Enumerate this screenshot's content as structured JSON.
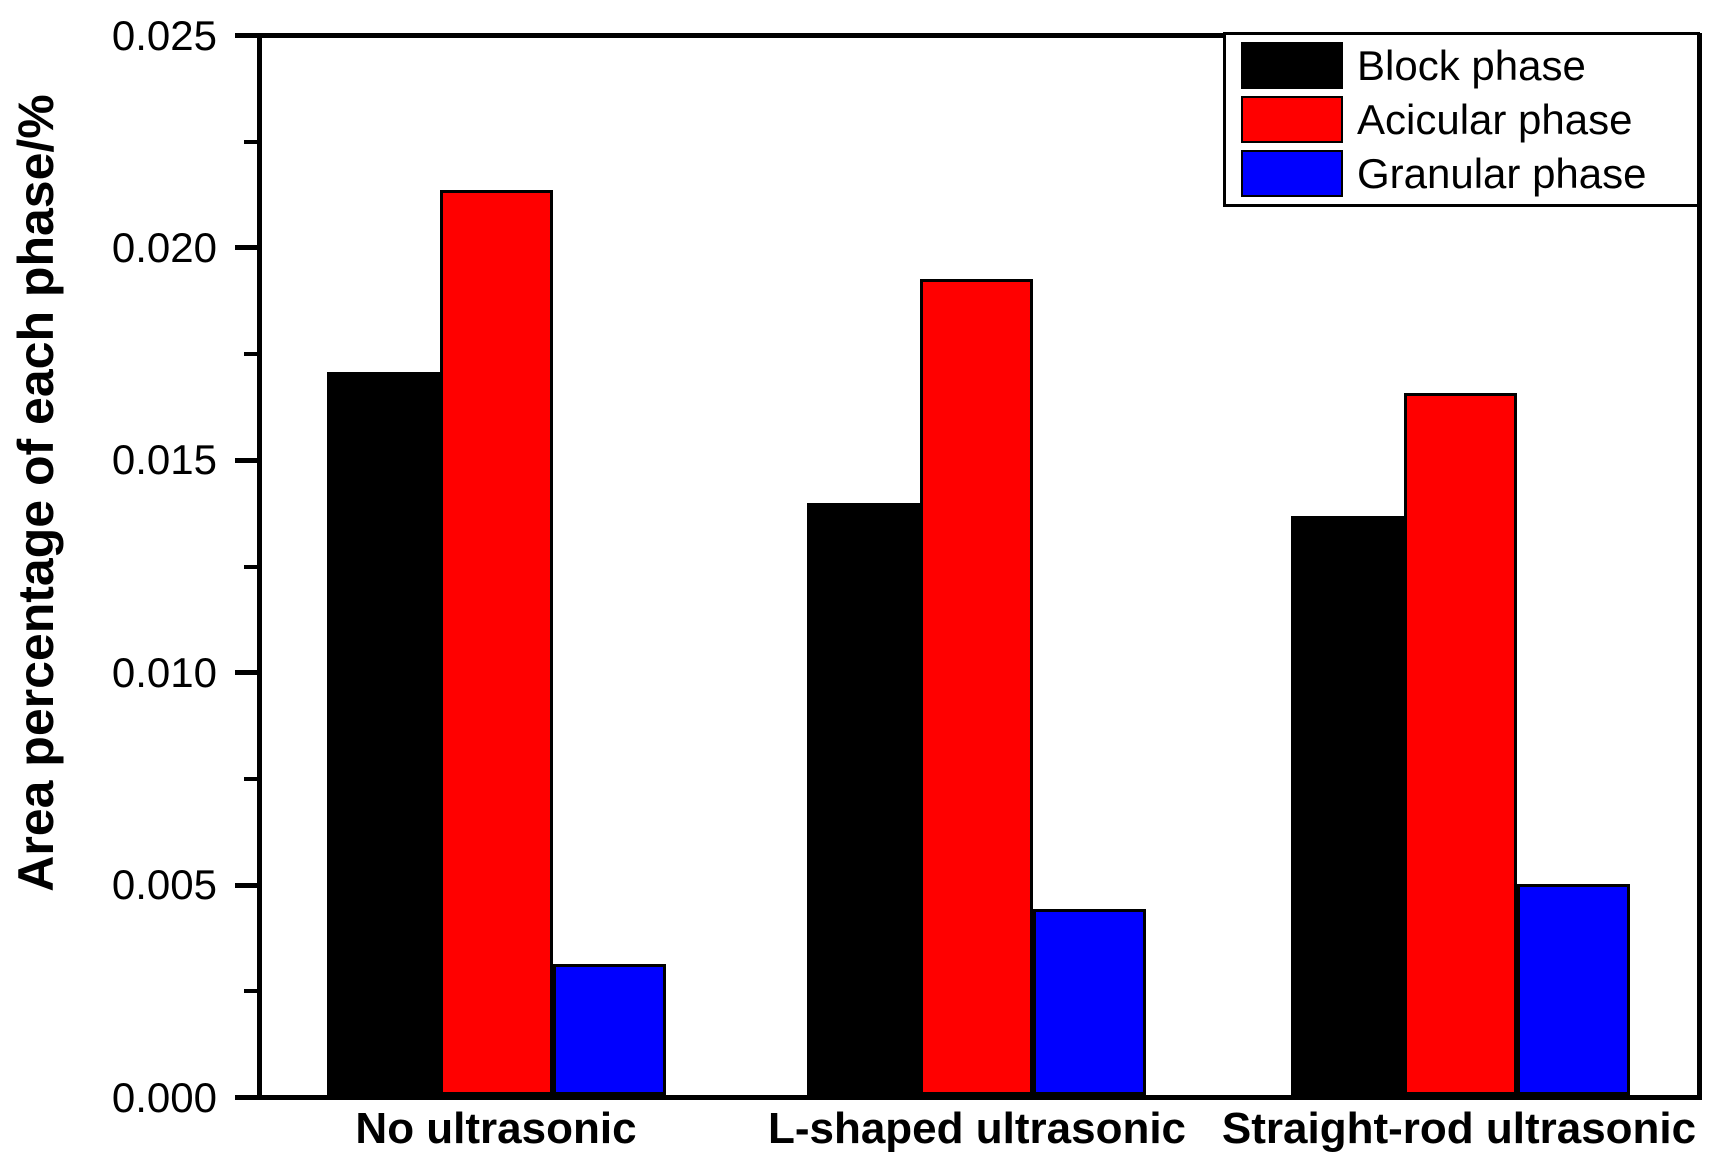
{
  "chart_data": {
    "type": "bar",
    "title": "",
    "xlabel": "",
    "ylabel": "Area percentage of each phase/%",
    "categories": [
      "No ultrasonic",
      "L-shaped ultrasonic",
      "Straight-rod ultrasonic"
    ],
    "series": [
      {
        "name": "Block phase",
        "color": "#000000",
        "values": [
          0.0171,
          0.014,
          0.0137
        ]
      },
      {
        "name": "Acicular phase",
        "color": "#ff0000",
        "values": [
          0.0214,
          0.0193,
          0.0166
        ]
      },
      {
        "name": "Granular phase",
        "color": "#0000ff",
        "values": [
          0.0031,
          0.0044,
          0.005
        ]
      }
    ],
    "ylim": [
      0,
      0.025
    ],
    "ytick_labels": [
      "0.000",
      "0.005",
      "0.010",
      "0.015",
      "0.020",
      "0.025"
    ],
    "yticks": [
      0.0,
      0.005,
      0.01,
      0.015,
      0.02,
      0.025
    ],
    "minor_yticks": [
      0.0025,
      0.0075,
      0.0125,
      0.0175,
      0.0225
    ],
    "grid": false,
    "legend_position": "top-right",
    "background_color": "#ffffff",
    "axis_color": "#000000"
  }
}
